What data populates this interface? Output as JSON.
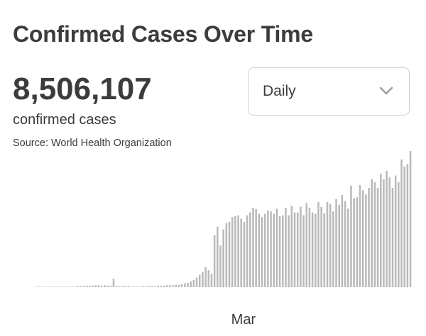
{
  "header": {
    "title": "Confirmed Cases Over Time",
    "total": "8,506,107",
    "total_label": "confirmed cases",
    "source": "Source:  World Health Organization"
  },
  "controls": {
    "interval_selected": "Daily",
    "interval_icon": "chevron-down-icon"
  },
  "colors": {
    "bars": "#b9b9b9",
    "text": "#3c3c3c",
    "border": "#cfcfcf"
  },
  "chart_data": {
    "type": "bar",
    "title": "",
    "xlabel": "",
    "ylabel": "",
    "x_ticks": [
      {
        "label": "Mar",
        "index": 60
      }
    ],
    "values": [
      0,
      0,
      0,
      0,
      0,
      0,
      0,
      0,
      0,
      0,
      0,
      1,
      1,
      1,
      2,
      2,
      2,
      3,
      3,
      3,
      4,
      4,
      3,
      4,
      3,
      3,
      18,
      3,
      2,
      2,
      2,
      2,
      1,
      1,
      1,
      1,
      2,
      2,
      2,
      2,
      2,
      3,
      3,
      3,
      4,
      4,
      4,
      5,
      5,
      6,
      8,
      9,
      12,
      15,
      20,
      26,
      32,
      42,
      36,
      28,
      110,
      128,
      88,
      122,
      135,
      138,
      148,
      150,
      152,
      145,
      138,
      152,
      158,
      168,
      165,
      155,
      148,
      155,
      162,
      160,
      155,
      166,
      150,
      152,
      168,
      152,
      172,
      158,
      158,
      170,
      152,
      178,
      168,
      158,
      155,
      180,
      170,
      156,
      180,
      176,
      160,
      186,
      174,
      195,
      182,
      166,
      215,
      188,
      190,
      216,
      205,
      196,
      210,
      228,
      222,
      210,
      240,
      228,
      246,
      232,
      210,
      236,
      222,
      270,
      255,
      260,
      288
    ],
    "ylim": [
      0,
      300
    ]
  }
}
